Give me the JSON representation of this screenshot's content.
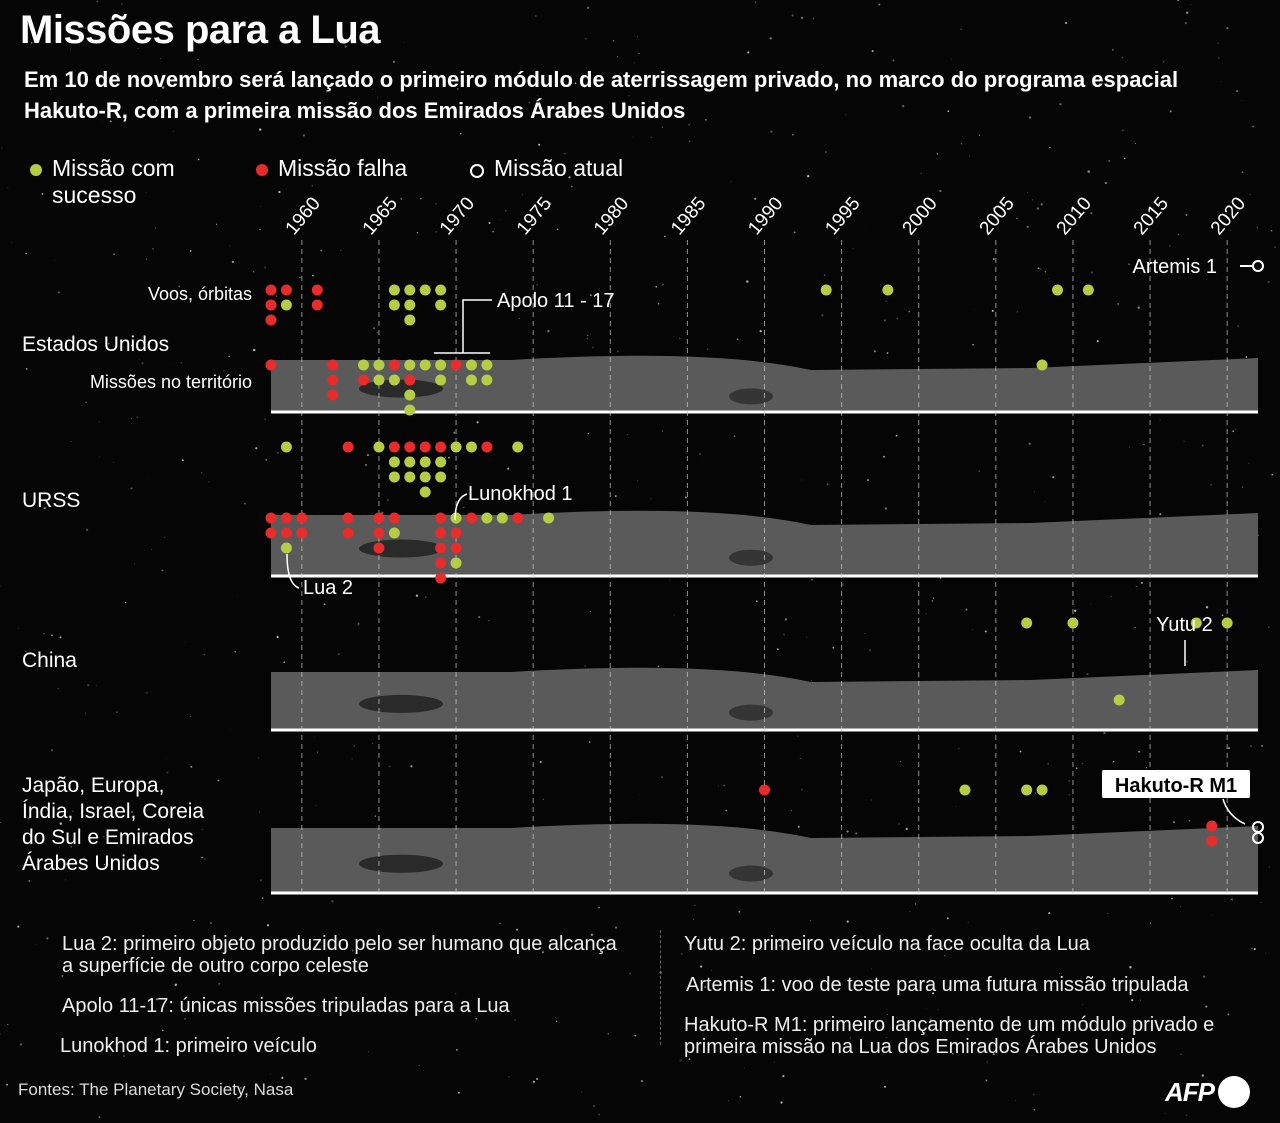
{
  "header": {
    "title": "Missões para a Lua",
    "subtitle": "Em 10 de novembro será lançado o primeiro módulo de aterrissagem privado, no marco do programa espacial Hakuto-R,  com a primeira missão dos Emirados Árabes Unidos"
  },
  "legend": {
    "success": "Missão com sucesso",
    "failed": "Missão falha",
    "current": "Missão atual"
  },
  "colors": {
    "success": "#b5cc45",
    "failed": "#e82b2b",
    "current": "#ffffff",
    "gridline": "#cccccc",
    "ground": "#5a5a5a"
  },
  "chart_data": {
    "type": "scatter",
    "x_ticks": [
      1960,
      1965,
      1970,
      1975,
      1980,
      1985,
      1990,
      1995,
      2000,
      2005,
      2010,
      2015,
      2020
    ],
    "xlim": [
      1958,
      2022
    ],
    "grid": true,
    "rows": [
      {
        "label": "Estados Unidos",
        "sublabels": {
          "orbits": "Voos, órbitas",
          "surface": "Missões no território"
        },
        "orbits": [
          {
            "year": 1958,
            "outcomes": [
              "failed",
              "failed",
              "failed"
            ]
          },
          {
            "year": 1959,
            "outcomes": [
              "failed",
              "success"
            ]
          },
          {
            "year": 1961,
            "outcomes": [
              "failed",
              "failed"
            ]
          },
          {
            "year": 1966,
            "outcomes": [
              "success",
              "success"
            ]
          },
          {
            "year": 1967,
            "outcomes": [
              "success",
              "success",
              "success"
            ]
          },
          {
            "year": 1968,
            "outcomes": [
              "success"
            ]
          },
          {
            "year": 1969,
            "outcomes": [
              "success",
              "success"
            ]
          },
          {
            "year": 1994,
            "outcomes": [
              "success"
            ]
          },
          {
            "year": 1998,
            "outcomes": [
              "success"
            ]
          },
          {
            "year": 2009,
            "outcomes": [
              "success"
            ]
          },
          {
            "year": 2011,
            "outcomes": [
              "success"
            ]
          }
        ],
        "surface": [
          {
            "year": 1958,
            "outcomes": [
              "failed"
            ]
          },
          {
            "year": 1962,
            "outcomes": [
              "failed",
              "failed",
              "failed"
            ]
          },
          {
            "year": 1964,
            "outcomes": [
              "success",
              "failed"
            ]
          },
          {
            "year": 1965,
            "outcomes": [
              "success",
              "success"
            ]
          },
          {
            "year": 1966,
            "outcomes": [
              "failed",
              "success"
            ]
          },
          {
            "year": 1967,
            "outcomes": [
              "success",
              "failed",
              "success",
              "success"
            ]
          },
          {
            "year": 1968,
            "outcomes": [
              "success"
            ]
          },
          {
            "year": 1969,
            "outcomes": [
              "success",
              "success"
            ]
          },
          {
            "year": 1970,
            "outcomes": [
              "failed"
            ]
          },
          {
            "year": 1971,
            "outcomes": [
              "success",
              "success"
            ]
          },
          {
            "year": 1972,
            "outcomes": [
              "success",
              "success"
            ]
          },
          {
            "year": 2008,
            "outcomes": [
              "success"
            ]
          }
        ],
        "current_orbit": {
          "year": 2022
        }
      },
      {
        "label": "URSS",
        "orbits": [
          {
            "year": 1959,
            "outcomes": [
              "success"
            ]
          },
          {
            "year": 1963,
            "outcomes": [
              "failed"
            ]
          },
          {
            "year": 1965,
            "outcomes": [
              "success"
            ]
          },
          {
            "year": 1966,
            "outcomes": [
              "failed",
              "success",
              "success"
            ]
          },
          {
            "year": 1967,
            "outcomes": [
              "failed",
              "success",
              "success"
            ]
          },
          {
            "year": 1968,
            "outcomes": [
              "failed",
              "success",
              "success",
              "success"
            ]
          },
          {
            "year": 1969,
            "outcomes": [
              "failed",
              "success",
              "success"
            ]
          },
          {
            "year": 1970,
            "outcomes": [
              "success"
            ]
          },
          {
            "year": 1971,
            "outcomes": [
              "success"
            ]
          },
          {
            "year": 1972,
            "outcomes": [
              "failed"
            ]
          },
          {
            "year": 1974,
            "outcomes": [
              "success"
            ]
          }
        ],
        "surface": [
          {
            "year": 1958,
            "outcomes": [
              "failed",
              "failed"
            ]
          },
          {
            "year": 1959,
            "outcomes": [
              "failed",
              "failed",
              "success"
            ]
          },
          {
            "year": 1960,
            "outcomes": [
              "failed",
              "failed"
            ]
          },
          {
            "year": 1963,
            "outcomes": [
              "failed",
              "failed"
            ]
          },
          {
            "year": 1965,
            "outcomes": [
              "failed",
              "failed",
              "failed"
            ]
          },
          {
            "year": 1966,
            "outcomes": [
              "failed",
              "success"
            ]
          },
          {
            "year": 1969,
            "outcomes": [
              "failed",
              "failed",
              "failed",
              "failed",
              "failed"
            ]
          },
          {
            "year": 1970,
            "outcomes": [
              "success",
              "failed",
              "failed",
              "success"
            ]
          },
          {
            "year": 1971,
            "outcomes": [
              "failed"
            ]
          },
          {
            "year": 1972,
            "outcomes": [
              "success"
            ]
          },
          {
            "year": 1973,
            "outcomes": [
              "success"
            ]
          },
          {
            "year": 1974,
            "outcomes": [
              "failed"
            ]
          },
          {
            "year": 1976,
            "outcomes": [
              "success"
            ]
          }
        ]
      },
      {
        "label": "China",
        "orbits": [
          {
            "year": 2007,
            "outcomes": [
              "success"
            ]
          },
          {
            "year": 2010,
            "outcomes": [
              "success"
            ]
          },
          {
            "year": 2018,
            "outcomes": [
              "success"
            ]
          },
          {
            "year": 2020,
            "outcomes": [
              "success"
            ]
          }
        ],
        "surface": [
          {
            "year": 2013,
            "outcomes": [
              "success"
            ]
          }
        ]
      },
      {
        "label": "Japão, Europa, Índia, Israel, Coreia do Sul e Emirados Árabes Unidos",
        "orbits": [
          {
            "year": 1990,
            "outcomes": [
              "failed"
            ]
          },
          {
            "year": 2003,
            "outcomes": [
              "success"
            ]
          },
          {
            "year": 2007,
            "outcomes": [
              "success"
            ]
          },
          {
            "year": 2008,
            "outcomes": [
              "success"
            ]
          }
        ],
        "surface": [
          {
            "year": 2019,
            "outcomes": [
              "failed",
              "failed"
            ]
          }
        ],
        "current_surface": {
          "year": 2022
        }
      }
    ],
    "annotations": {
      "artemis": "Artemis 1",
      "apolo": "Apolo 11 - 17",
      "lunokhod": "Lunokhod 1",
      "lua2": "Lua 2",
      "yutu": "Yutu 2",
      "hakuto": "Hakuto-R M1"
    }
  },
  "footnotes": {
    "lua2": "Lua 2: primeiro objeto produzido pelo ser humano que alcança a superfície de outro corpo celeste",
    "apolo": "Apolo 11-17: únicas missões tripuladas para a Lua",
    "lunokhod": "Lunokhod 1: primeiro veículo",
    "yutu": "Yutu 2: primeiro veículo na face oculta da Lua",
    "artemis": "Artemis 1: voo de teste para uma futura missão tripulada",
    "hakuto": "Hakuto-R M1: primeiro lançamento de um módulo privado e primeira missão na Lua dos Emirados Árabes Unidos"
  },
  "source": "Fontes: The Planetary Society, Nasa",
  "logo": "AFP"
}
